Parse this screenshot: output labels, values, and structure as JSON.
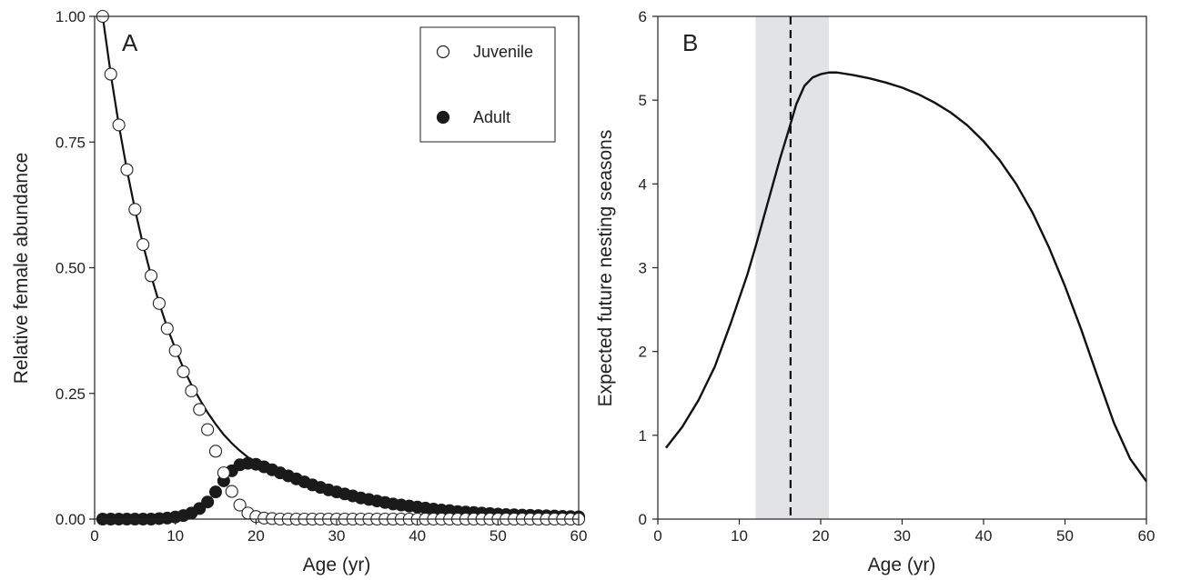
{
  "chart_data": [
    {
      "panel": "A",
      "type": "scatter",
      "xlabel": "Age (yr)",
      "ylabel": "Relative female abundance",
      "xlim": [
        0,
        60
      ],
      "ylim": [
        0,
        1
      ],
      "xticks": [
        "0",
        "10",
        "20",
        "30",
        "40",
        "50",
        "60"
      ],
      "yticks": [
        "0.00",
        "0.25",
        "0.50",
        "0.75",
        "1.00"
      ],
      "legend_position": "top-right",
      "x": [
        1,
        2,
        3,
        4,
        5,
        6,
        7,
        8,
        9,
        10,
        11,
        12,
        13,
        14,
        15,
        16,
        17,
        18,
        19,
        20,
        21,
        22,
        23,
        24,
        25,
        26,
        27,
        28,
        29,
        30,
        31,
        32,
        33,
        34,
        35,
        36,
        37,
        38,
        39,
        40,
        41,
        42,
        43,
        44,
        45,
        46,
        47,
        48,
        49,
        50,
        51,
        52,
        53,
        54,
        55,
        56,
        57,
        58,
        59,
        60
      ],
      "series": [
        {
          "name": "Juvenile",
          "marker": "open-circle",
          "values": [
            1.0,
            0.885,
            0.784,
            0.695,
            0.616,
            0.546,
            0.484,
            0.429,
            0.379,
            0.335,
            0.293,
            0.255,
            0.218,
            0.178,
            0.135,
            0.092,
            0.055,
            0.028,
            0.012,
            0.005,
            0.002,
            0.001,
            0,
            0,
            0,
            0,
            0,
            0,
            0,
            0,
            0,
            0,
            0,
            0,
            0,
            0,
            0,
            0,
            0,
            0,
            0,
            0,
            0,
            0,
            0,
            0,
            0,
            0,
            0,
            0,
            0,
            0,
            0,
            0,
            0,
            0,
            0,
            0,
            0,
            0
          ]
        },
        {
          "name": "Adult",
          "marker": "filled-circle",
          "values": [
            0,
            0,
            0,
            0,
            0,
            0,
            0,
            0.001,
            0.002,
            0.004,
            0.007,
            0.012,
            0.021,
            0.034,
            0.054,
            0.076,
            0.096,
            0.108,
            0.111,
            0.109,
            0.104,
            0.098,
            0.092,
            0.086,
            0.08,
            0.074,
            0.068,
            0.063,
            0.058,
            0.054,
            0.05,
            0.046,
            0.042,
            0.039,
            0.036,
            0.033,
            0.03,
            0.028,
            0.026,
            0.024,
            0.022,
            0.02,
            0.018,
            0.017,
            0.015,
            0.014,
            0.013,
            0.012,
            0.011,
            0.01,
            0.009,
            0.0085,
            0.008,
            0.0075,
            0.007,
            0.0065,
            0.006,
            0.0055,
            0.005,
            0.0045
          ]
        }
      ]
    },
    {
      "panel": "B",
      "type": "line",
      "xlabel": "Age (yr)",
      "ylabel": "Expected future nesting seasons",
      "xlim": [
        0,
        60
      ],
      "ylim": [
        0,
        6
      ],
      "xticks": [
        "0",
        "10",
        "20",
        "30",
        "40",
        "50",
        "60"
      ],
      "yticks": [
        "0",
        "1",
        "2",
        "3",
        "4",
        "5",
        "6"
      ],
      "shaded_band": [
        12,
        21
      ],
      "dashed_vline": 16.3,
      "x": [
        1,
        3,
        5,
        7,
        9,
        11,
        12,
        13,
        14,
        15,
        16,
        17,
        18,
        19,
        20,
        21,
        22,
        24,
        26,
        28,
        30,
        32,
        34,
        36,
        38,
        40,
        42,
        44,
        46,
        48,
        50,
        52,
        54,
        56,
        58,
        60
      ],
      "values": [
        0.85,
        1.1,
        1.42,
        1.82,
        2.35,
        2.92,
        3.25,
        3.6,
        3.95,
        4.3,
        4.62,
        4.95,
        5.17,
        5.27,
        5.31,
        5.33,
        5.33,
        5.3,
        5.26,
        5.21,
        5.15,
        5.07,
        4.97,
        4.85,
        4.7,
        4.51,
        4.28,
        4.0,
        3.66,
        3.25,
        2.78,
        2.26,
        1.7,
        1.15,
        0.72,
        0.45
      ]
    }
  ],
  "legend": {
    "juvenile_label": "Juvenile",
    "adult_label": "Adult"
  },
  "panel_labels": {
    "a": "A",
    "b": "B"
  }
}
